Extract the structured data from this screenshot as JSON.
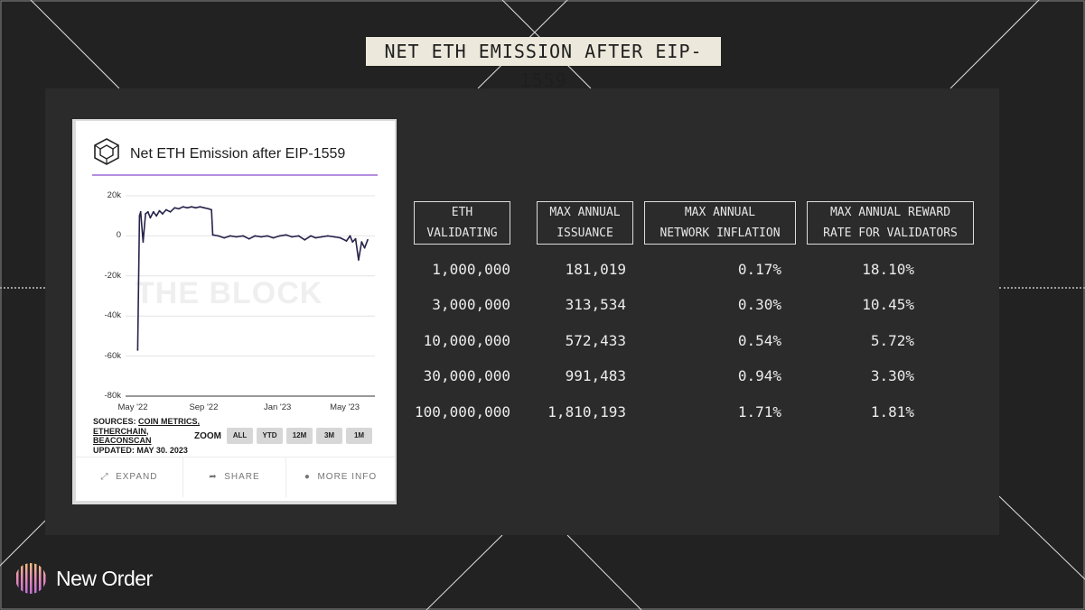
{
  "slide": {
    "title": "NET ETH EMISSION AFTER EIP-1559"
  },
  "card": {
    "title": "Net ETH Emission after EIP-1559",
    "watermark": "THE BLOCK",
    "sources_label": "SOURCES:",
    "sources": [
      "COIN METRICS,",
      "ETHERCHAIN,",
      "BEACONSCAN"
    ],
    "updated": "UPDATED: MAY 30. 2023",
    "zoom_label": "ZOOM",
    "zoom_options": [
      "ALL",
      "YTD",
      "12M",
      "3M",
      "1M"
    ],
    "footer": {
      "expand": "EXPAND",
      "share": "SHARE",
      "more_info": "MORE INFO"
    },
    "colors": {
      "line": "#26224a",
      "accent": "#b48ee0"
    }
  },
  "chart_data": {
    "type": "line",
    "title": "Net ETH Emission after EIP-1559",
    "y_ticks": [
      "20k",
      "0",
      "-20k",
      "-40k",
      "-60k",
      "-80k"
    ],
    "x_ticks": [
      "May '22",
      "Sep '22",
      "Jan '23",
      "May '23"
    ],
    "ylim": [
      -80000,
      20000
    ],
    "grid": true,
    "series": [
      {
        "x": [
          "2022-05-15",
          "2022-05-18",
          "2022-05-20",
          "2022-05-24",
          "2022-05-28",
          "2022-06-01",
          "2022-06-05",
          "2022-06-10",
          "2022-06-15",
          "2022-06-20",
          "2022-06-25",
          "2022-07-01",
          "2022-07-08",
          "2022-07-15",
          "2022-07-22",
          "2022-07-29",
          "2022-08-05",
          "2022-08-12",
          "2022-08-19",
          "2022-08-26",
          "2022-09-02",
          "2022-09-09",
          "2022-09-14",
          "2022-09-16",
          "2022-09-25",
          "2022-10-05",
          "2022-10-15",
          "2022-10-25",
          "2022-11-05",
          "2022-11-15",
          "2022-11-25",
          "2022-12-05",
          "2022-12-15",
          "2022-12-25",
          "2023-01-05",
          "2023-01-15",
          "2023-01-25",
          "2023-02-05",
          "2023-02-15",
          "2023-02-25",
          "2023-03-05",
          "2023-03-15",
          "2023-03-25",
          "2023-04-05",
          "2023-04-15",
          "2023-04-25",
          "2023-05-01",
          "2023-05-05",
          "2023-05-10",
          "2023-05-15",
          "2023-05-20",
          "2023-05-25",
          "2023-05-30"
        ],
        "values": [
          -57000,
          10000,
          12000,
          -3000,
          11000,
          12000,
          9000,
          12000,
          10000,
          12500,
          11000,
          13000,
          12000,
          14000,
          13500,
          14500,
          14000,
          14500,
          14000,
          14500,
          14000,
          13500,
          13000,
          500,
          0,
          -1000,
          0,
          -500,
          0,
          -1500,
          0,
          -500,
          0,
          -1000,
          0,
          500,
          -500,
          0,
          -2000,
          0,
          -1000,
          -500,
          0,
          -500,
          -1000,
          -2500,
          0,
          -3000,
          -1500,
          -12000,
          -3000,
          -6000,
          -2000
        ]
      }
    ]
  },
  "table": {
    "headers": [
      [
        "ETH",
        "VALIDATING"
      ],
      [
        "MAX ANNUAL",
        "ISSUANCE"
      ],
      [
        "MAX ANNUAL",
        "NETWORK INFLATION"
      ],
      [
        "MAX ANNUAL REWARD",
        "RATE FOR VALIDATORS"
      ]
    ],
    "rows": [
      [
        "1,000,000",
        "181,019",
        "0.17%",
        "18.10%"
      ],
      [
        "3,000,000",
        "313,534",
        "0.30%",
        "10.45%"
      ],
      [
        "10,000,000",
        "572,433",
        "0.54%",
        "5.72%"
      ],
      [
        "30,000,000",
        "991,483",
        "0.94%",
        "3.30%"
      ],
      [
        "100,000,000",
        "1,810,193",
        "1.71%",
        "1.81%"
      ]
    ]
  },
  "brand": {
    "name": "New Order"
  }
}
